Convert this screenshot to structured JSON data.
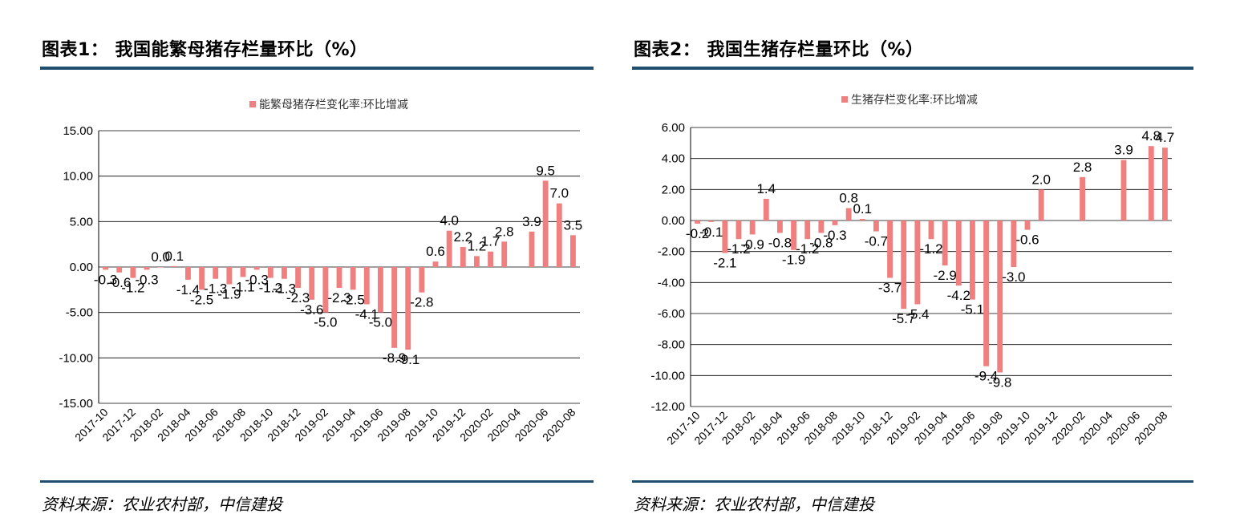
{
  "panels": [
    {
      "title": "图表1：   我国能繁母猪存栏量环比（%）",
      "source": "资料来源：农业农村部，中信建投"
    },
    {
      "title": "图表2：   我国生猪存栏量环比（%）",
      "source": "资料来源：农业农村部，中信建投"
    }
  ],
  "colors": {
    "bar": "#f08080",
    "rule": "#1f4e6e",
    "grid": "#000000"
  },
  "chart_data": [
    {
      "type": "bar",
      "title": "",
      "legend": "能繁母猪存栏变化率:环比增减",
      "legend_position": "top-center",
      "grid": true,
      "ylim": [
        -15,
        15
      ],
      "yticks": [
        "15.00",
        "10.00",
        "5.00",
        "0.00",
        "-5.00",
        "-10.00",
        "-15.00"
      ],
      "ytick_values": [
        15,
        10,
        5,
        0,
        -5,
        -10,
        -15
      ],
      "xtick_labels": [
        "2017-10",
        "2017-12",
        "2018-02",
        "2018-04",
        "2018-06",
        "2018-08",
        "2018-10",
        "2018-12",
        "2019-02",
        "2019-04",
        "2019-06",
        "2019-08",
        "2019-10",
        "2019-12",
        "2020-02",
        "2020-04",
        "2020-06",
        "2020-08"
      ],
      "categories": [
        "2017-10",
        "2017-11",
        "2017-12",
        "2018-01",
        "2018-02",
        "2018-03",
        "2018-04",
        "2018-05",
        "2018-06",
        "2018-07",
        "2018-08",
        "2018-09",
        "2018-10",
        "2018-11",
        "2018-12",
        "2019-01",
        "2019-02",
        "2019-03",
        "2019-04",
        "2019-05",
        "2019-06",
        "2019-07",
        "2019-08",
        "2019-09",
        "2019-10",
        "2019-11",
        "2019-12",
        "2020-01",
        "2020-02",
        "2020-03",
        "2020-04",
        "2020-05",
        "2020-06",
        "2020-07",
        "2020-08"
      ],
      "values": [
        -0.3,
        -0.6,
        -1.2,
        -0.3,
        0.0,
        0.1,
        -1.4,
        -2.5,
        -1.3,
        -1.9,
        -1.1,
        -0.3,
        -1.2,
        -1.3,
        -2.3,
        -3.6,
        -5.0,
        -2.3,
        -2.5,
        -4.1,
        -5.0,
        -8.9,
        -9.1,
        -2.8,
        0.6,
        4.0,
        2.2,
        1.2,
        1.7,
        2.8,
        null,
        3.9,
        9.5,
        7.0,
        3.5
      ],
      "labels": [
        "-0.3",
        "-0.6",
        "-1.2",
        "-0.3",
        "0.0",
        "0.1",
        "-1.4",
        "-2.5",
        "-1.3",
        "-1.9",
        "-1.1",
        "-0.3",
        "-1.2",
        "-1.3",
        "-2.3",
        "-3.6",
        "-5.0",
        "-2.3",
        "-2.5",
        "-4.1",
        "-5.0",
        "-8.9",
        "-9.1",
        "-2.8",
        "0.6",
        "4.0",
        "2.2",
        "1.2",
        "1.7",
        "2.8",
        "",
        "3.9",
        "9.5",
        "7.0",
        "3.5"
      ]
    },
    {
      "type": "bar",
      "title": "",
      "legend": "生猪存栏变化率:环比增减",
      "legend_position": "top-center",
      "grid": true,
      "ylim": [
        -12,
        6
      ],
      "yticks": [
        "6.00",
        "4.00",
        "2.00",
        "0.00",
        "-2.00",
        "-4.00",
        "-6.00",
        "-8.00",
        "-10.00",
        "-12.00"
      ],
      "ytick_values": [
        6,
        4,
        2,
        0,
        -2,
        -4,
        -6,
        -8,
        -10,
        -12
      ],
      "xtick_labels": [
        "2017-10",
        "2017-12",
        "2018-02",
        "2018-04",
        "2018-06",
        "2018-08",
        "2018-10",
        "2018-12",
        "2019-02",
        "2019-04",
        "2019-06",
        "2019-08",
        "2019-10",
        "2019-12",
        "2020-02",
        "2020-04",
        "2020-06",
        "2020-08"
      ],
      "categories": [
        "2017-10",
        "2017-11",
        "2017-12",
        "2018-01",
        "2018-02",
        "2018-03",
        "2018-04",
        "2018-05",
        "2018-06",
        "2018-07",
        "2018-08",
        "2018-09",
        "2018-10",
        "2018-11",
        "2018-12",
        "2019-01",
        "2019-02",
        "2019-03",
        "2019-04",
        "2019-05",
        "2019-06",
        "2019-07",
        "2019-08",
        "2019-09",
        "2019-10",
        "2019-11",
        "2019-12",
        "2020-01",
        "2020-02",
        "2020-03",
        "2020-04",
        "2020-05",
        "2020-06",
        "2020-07",
        "2020-08"
      ],
      "values": [
        -0.2,
        -0.1,
        -2.1,
        -1.2,
        -0.9,
        1.4,
        -0.8,
        -1.9,
        -1.2,
        -0.8,
        -0.3,
        0.8,
        0.1,
        -0.7,
        -3.7,
        -5.7,
        -5.4,
        -1.2,
        -2.9,
        -4.2,
        -5.1,
        -9.4,
        -9.8,
        -3.0,
        -0.6,
        2.0,
        null,
        null,
        2.8,
        null,
        null,
        3.9,
        null,
        4.8,
        4.7
      ],
      "labels": [
        "-0.2",
        "-0.1",
        "-2.1",
        "-1.2",
        "-0.9",
        "1.4",
        "-0.8",
        "-1.9",
        "-1.2",
        "-0.8",
        "-0.3",
        "0.8",
        "0.1",
        "-0.7",
        "-3.7",
        "-5.7",
        "-5.4",
        "-1.2",
        "-2.9",
        "-4.2",
        "-5.1",
        "-9.4",
        "-9.8",
        "-3.0",
        "-0.6",
        "2.0",
        "",
        "",
        "2.8",
        "",
        "",
        "3.9",
        "",
        "4.8",
        "4.7"
      ]
    }
  ]
}
